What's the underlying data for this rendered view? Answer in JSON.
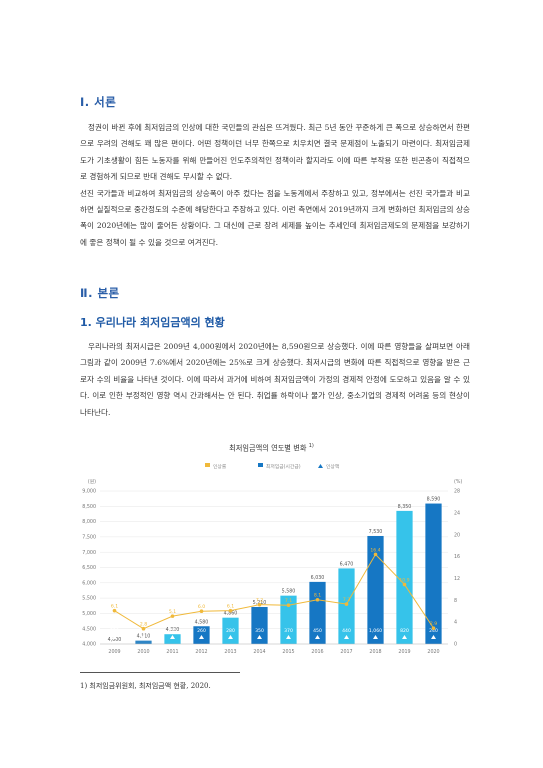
{
  "section1": {
    "heading": "Ⅰ. 서론",
    "paragraphs": [
      "정권이 바뀐 후에 최저임금의 인상에 대한 국민들의 관심은 뜨겨웠다. 최근 5년 동안 꾸준하게 큰 폭으로 상승하면서 한편으로 우려의 견해도 꽤 많은 편이다. 어떤 정책이던 너무 한쪽으로 치우치면 결국 문제점이 노출되기 마련이다. 최저임금제도가 기초생활이 힘든 노동자를 위해 만들어진 인도주의적인 정책이라 할지라도 이에 따른 부작용 또한 빈곤층이 직접적으로 경험하게 되므로 반대 견해도 무시할 수 없다.",
      "선진 국가들과 비교하여 최저임금의 상승폭이 아주 컸다는 점을 노동계에서 주장하고 있고, 정부에서는 선진 국가들과 비교하면 실질적으로 중간정도의 수준에 해당한다고 주장하고 있다. 이런 측면에서 2019년까지 크게 변화하던 최저임금의 상승폭이 2020년에는 많이 줄어든 상황이다. 그 대신에 근로 장려 세제를 높이는 추세인데 최저임금제도의 문제점을 보강하기에 좋은 정책이 될 수 있을 것으로 여겨진다."
    ]
  },
  "section2": {
    "heading": "Ⅱ. 본론",
    "subheading": "1. 우리나라 최저임금액의 현황",
    "paragraph": "우리나라의 최저시급은 2009년 4,000원에서 2020년에는 8,590원으로 상승했다. 이에 따른 영향들을 살펴보면 아래 그림과 같이 2009년 7.6%에서 2020년에는 25%로 크게 상승했다. 최저시급의 변화에 따른 직접적으로 영향을 받은 근로자 수의 비율을 나타낸 것이다. 이에 따라서 과거에 비하여 최저임금액이 가정의 경제적 안정에 도모하고 있음을 알 수 있다. 이로 인한 부정적인 영향 역시 간과해서는 안 된다. 취업률 하락이나 물가 인상, 중소기업의 경제적 어려움 등의 현상이 나타난다."
  },
  "chart_data": {
    "type": "bar",
    "title": "최저임금액의 연도별 변화",
    "title_note": "1)",
    "legend": [
      "인상률",
      "최저임금(시간급)",
      "인상액"
    ],
    "legend_placement": "top",
    "left_unit": "(원)",
    "right_unit": "(%)",
    "categories": [
      "2009",
      "2010",
      "2011",
      "2012",
      "2013",
      "2014",
      "2015",
      "2016",
      "2017",
      "2018",
      "2019",
      "2020"
    ],
    "left_ticks": [
      "4,000",
      "4,500",
      "5,000",
      "5,500",
      "6,000",
      "6,500",
      "7,000",
      "7,500",
      "8,000",
      "8,500",
      "9,000"
    ],
    "right_ticks": [
      "0",
      "4",
      "8",
      "12",
      "16",
      "20",
      "24",
      "28"
    ],
    "ylim": [
      4000,
      9000
    ],
    "y2lim": [
      0,
      28
    ],
    "series": [
      {
        "name": "최저임금(시간급)",
        "values": [
          4000,
          4110,
          4320,
          4580,
          4860,
          5210,
          5580,
          6030,
          6470,
          7530,
          8350,
          8590
        ],
        "labels": [
          "4,000",
          "4,110",
          "4,320",
          "4,580",
          "4,860",
          "5,210",
          "5,580",
          "6,030",
          "6,470",
          "7,530",
          "8,350",
          "8,590"
        ]
      },
      {
        "name": "인상액",
        "values": [
          230,
          110,
          210,
          260,
          280,
          350,
          370,
          450,
          440,
          1060,
          820,
          240
        ],
        "labels": [
          "230",
          "110",
          "210",
          "260",
          "280",
          "350",
          "370",
          "450",
          "440",
          "1,060",
          "820",
          "240"
        ]
      },
      {
        "name": "인상률",
        "values": [
          6.1,
          2.8,
          5.1,
          6.0,
          6.1,
          7.2,
          7.1,
          8.1,
          7.3,
          16.4,
          10.9,
          2.9
        ],
        "labels": [
          "6.1",
          "2.8",
          "5.1",
          "6.0",
          "6.1",
          "7.2",
          "7.1",
          "8.1",
          "7.3",
          "16.4",
          "10.9",
          "2.9"
        ]
      }
    ],
    "colors": {
      "bar_dark": "#2f86c6",
      "bar_light": "#36c3ea",
      "bar_tail": "#1677c4",
      "line": "#f0b93a",
      "grid": "#e6e6e6"
    }
  },
  "footnote": {
    "text": "1) 최저임금위원회, 최저임금액 현황, 2020."
  }
}
